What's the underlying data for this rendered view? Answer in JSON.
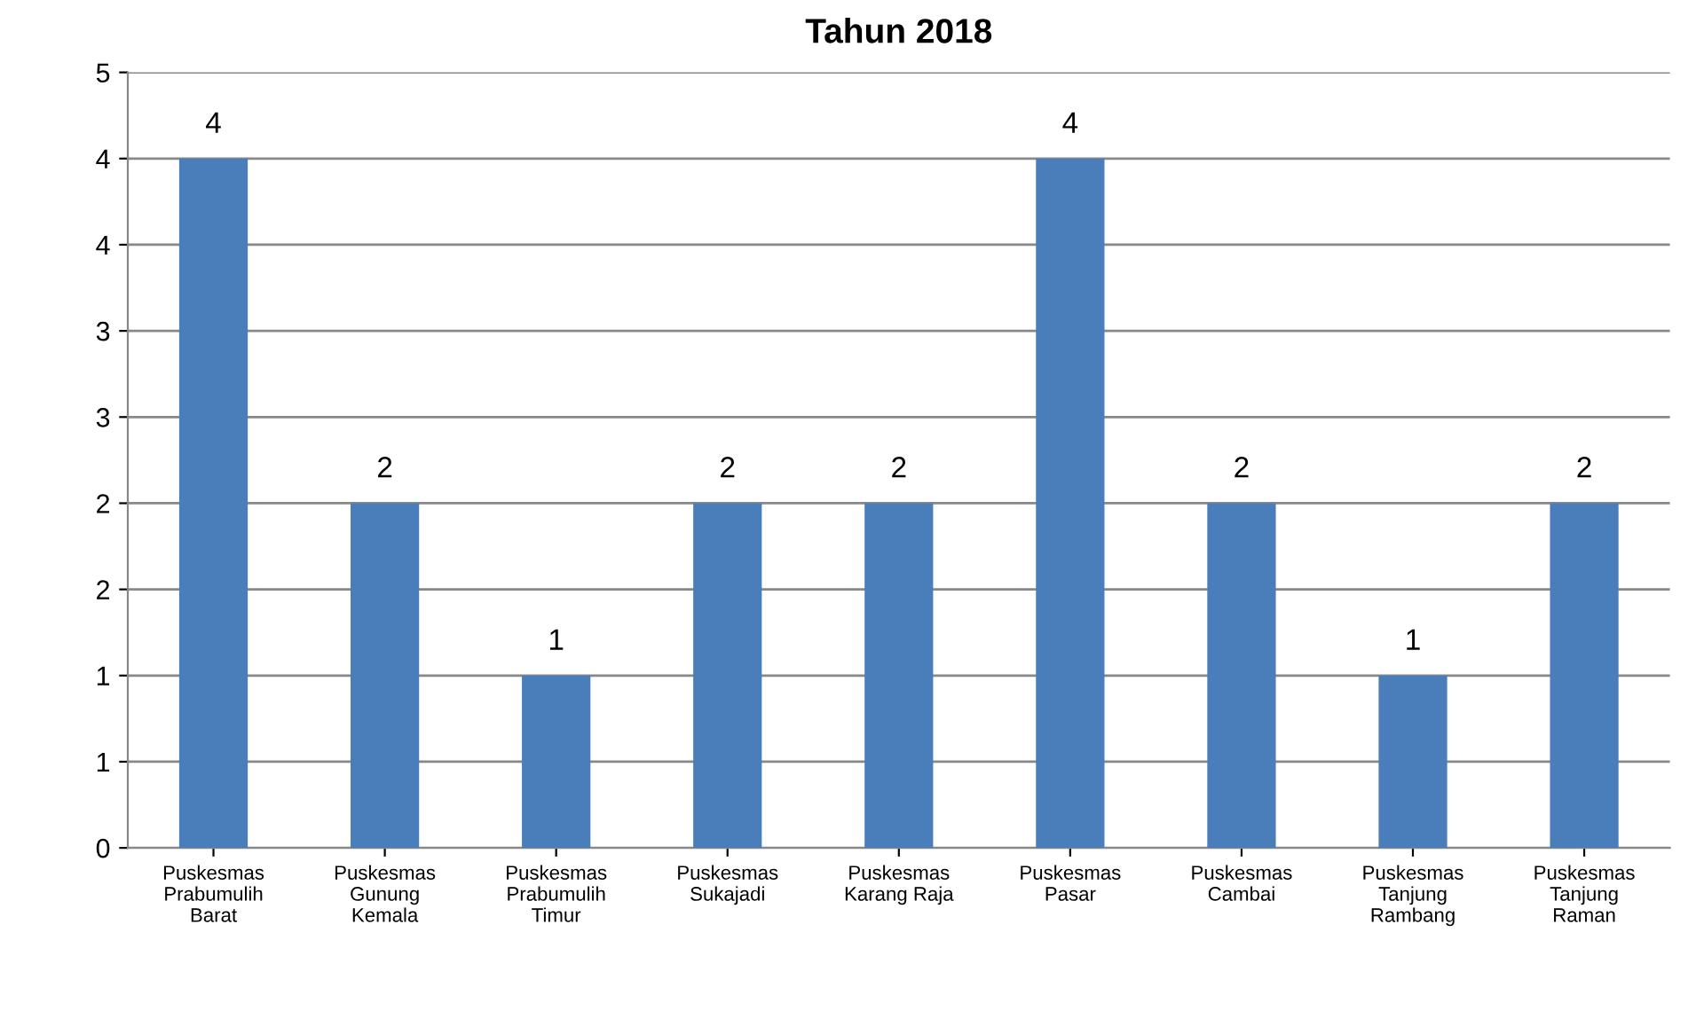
{
  "chart_data": {
    "type": "bar",
    "title": "Tahun 2018",
    "categories": [
      "Puskesmas\nPrabumulih\nBarat",
      "Puskesmas\nGunung\nKemala",
      "Puskesmas\nPrabumulih\nTimur",
      "Puskesmas\nSukajadi",
      "Puskesmas\nKarang Raja",
      "Puskesmas\nPasar",
      "Puskesmas\nCambai",
      "Puskesmas\nTanjung\nRambang",
      "Puskesmas\nTanjung\nRaman"
    ],
    "values": [
      4,
      2,
      1,
      2,
      2,
      4,
      2,
      1,
      2
    ],
    "color": "#4a7ebb",
    "ylim": [
      0,
      4.5
    ],
    "yticks": [
      0,
      {
        "value": 0.5,
        "label": "1"
      },
      1,
      {
        "value": 1.5,
        "label": "2"
      },
      2,
      {
        "value": 2.5,
        "label": "3"
      },
      3,
      {
        "value": 3.5,
        "label": "4"
      },
      4,
      {
        "value": 4.5,
        "label": "5"
      }
    ],
    "grid": "y",
    "data_labels": true,
    "legend": false
  }
}
